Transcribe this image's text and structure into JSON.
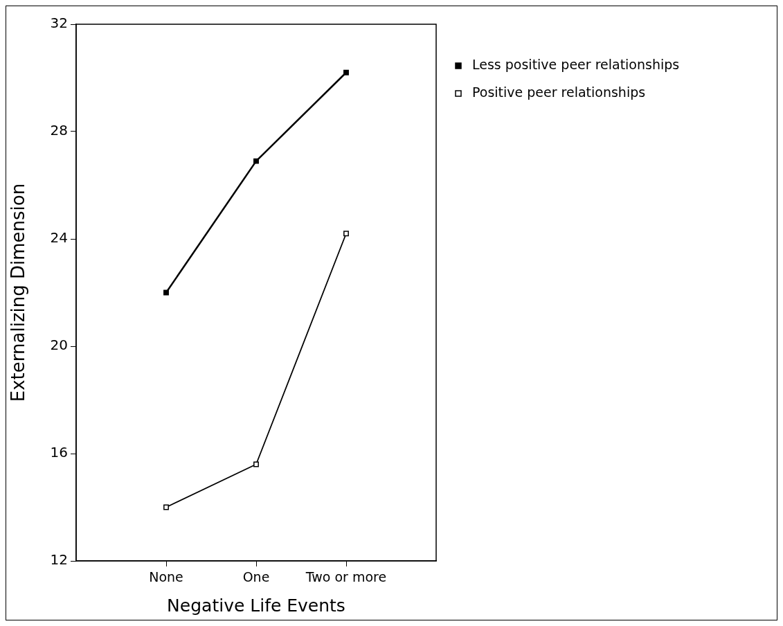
{
  "chart_data": {
    "type": "line",
    "xlabel": "Negative Life Events",
    "ylabel": "Externalizing Dimension",
    "categories": [
      "None",
      "One",
      "Two or more"
    ],
    "series": [
      {
        "name": "Less positive peer relationships",
        "color": "#000000",
        "values": [
          22.0,
          26.9,
          30.2
        ]
      },
      {
        "name": "Positive peer relationships",
        "color": "#000000",
        "values": [
          14.0,
          15.6,
          24.2
        ]
      }
    ],
    "ylim": [
      12,
      32
    ],
    "yticks": [
      12,
      16,
      20,
      24,
      28,
      32
    ],
    "grid": false,
    "legend": "top right",
    "marker": "square",
    "line_style": "solid"
  }
}
